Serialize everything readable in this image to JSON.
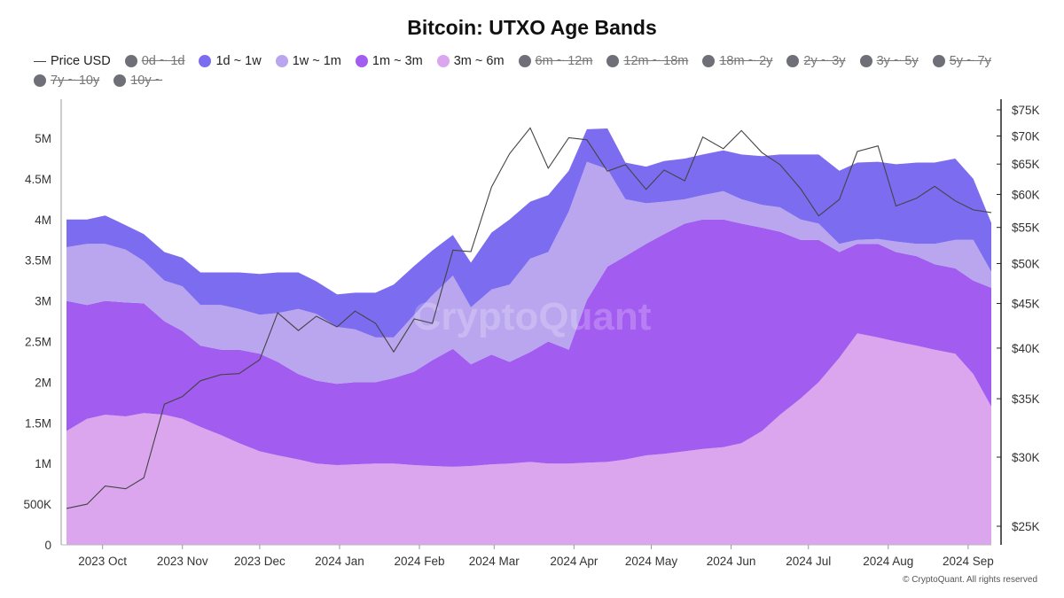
{
  "title": "Bitcoin: UTXO Age Bands",
  "copyright": "© CryptoQuant. All rights reserved",
  "watermark": "CryptoQuant",
  "legend": [
    {
      "label": "Price USD",
      "kind": "line",
      "color": "#444444",
      "active": true
    },
    {
      "label": "0d ~ 1d",
      "kind": "dot",
      "color": "#6f6f78",
      "active": false
    },
    {
      "label": "1d ~ 1w",
      "kind": "dot",
      "color": "#7b6cf0",
      "active": true
    },
    {
      "label": "1w ~ 1m",
      "kind": "dot",
      "color": "#b9a6ef",
      "active": true
    },
    {
      "label": "1m ~ 3m",
      "kind": "dot",
      "color": "#a35cf0",
      "active": true
    },
    {
      "label": "3m ~ 6m",
      "kind": "dot",
      "color": "#dba6ee",
      "active": true
    },
    {
      "label": "6m ~ 12m",
      "kind": "dot",
      "color": "#6f6f78",
      "active": false
    },
    {
      "label": "12m ~ 18m",
      "kind": "dot",
      "color": "#6f6f78",
      "active": false
    },
    {
      "label": "18m ~ 2y",
      "kind": "dot",
      "color": "#6f6f78",
      "active": false
    },
    {
      "label": "2y ~ 3y",
      "kind": "dot",
      "color": "#6f6f78",
      "active": false
    },
    {
      "label": "3y ~ 5y",
      "kind": "dot",
      "color": "#6f6f78",
      "active": false
    },
    {
      "label": "5y ~ 7y",
      "kind": "dot",
      "color": "#6f6f78",
      "active": false
    },
    {
      "label": "7y ~ 10y",
      "kind": "dot",
      "color": "#6f6f78",
      "active": false
    },
    {
      "label": "10y ~",
      "kind": "dot",
      "color": "#6f6f78",
      "active": false
    }
  ],
  "chart_data": {
    "type": "area",
    "stacked": true,
    "title": "Bitcoin: UTXO Age Bands",
    "x_ticks": [
      "2023 Oct",
      "2023 Nov",
      "2023 Dec",
      "2024 Jan",
      "2024 Feb",
      "2024 Mar",
      "2024 Apr",
      "2024 May",
      "2024 Jun",
      "2024 Jul",
      "2024 Aug",
      "2024 Sep"
    ],
    "y_left": {
      "ticks": [
        0,
        500000,
        1000000,
        1500000,
        2000000,
        2500000,
        3000000,
        3500000,
        4000000,
        4500000,
        5000000
      ],
      "tick_labels": [
        "0",
        "500K",
        "1M",
        "1.5M",
        "2M",
        "2.5M",
        "3M",
        "3.5M",
        "4M",
        "4.5M",
        "5M"
      ],
      "ylim": [
        0,
        5000000
      ]
    },
    "y_right": {
      "scale": "log",
      "ticks": [
        25000,
        30000,
        35000,
        40000,
        45000,
        50000,
        55000,
        60000,
        65000,
        70000,
        75000
      ],
      "tick_labels": [
        "$25K",
        "$30K",
        "$35K",
        "$40K",
        "$45K",
        "$50K",
        "$55K",
        "$60K",
        "$65K",
        "$70K",
        "$75K"
      ],
      "ylim": [
        24000,
        76000
      ]
    },
    "grid": false,
    "legend_position": "top",
    "dates": [
      "2023-09-17",
      "2023-09-25",
      "2023-10-02",
      "2023-10-10",
      "2023-10-17",
      "2023-10-25",
      "2023-11-01",
      "2023-11-08",
      "2023-11-16",
      "2023-11-23",
      "2023-12-01",
      "2023-12-08",
      "2023-12-16",
      "2023-12-23",
      "2023-12-31",
      "2024-01-07",
      "2024-01-15",
      "2024-01-22",
      "2024-01-30",
      "2024-02-06",
      "2024-02-14",
      "2024-02-21",
      "2024-02-29",
      "2024-03-07",
      "2024-03-15",
      "2024-03-22",
      "2024-03-30",
      "2024-04-06",
      "2024-04-14",
      "2024-04-21",
      "2024-04-29",
      "2024-05-06",
      "2024-05-14",
      "2024-05-21",
      "2024-05-29",
      "2024-06-05",
      "2024-06-13",
      "2024-06-20",
      "2024-06-28",
      "2024-07-05",
      "2024-07-13",
      "2024-07-20",
      "2024-07-28",
      "2024-08-04",
      "2024-08-12",
      "2024-08-19",
      "2024-08-27",
      "2024-09-03",
      "2024-09-10"
    ],
    "series": [
      {
        "name": "3m ~ 6m",
        "color": "#dba6ee",
        "values": [
          1400000,
          1550000,
          1600000,
          1580000,
          1620000,
          1600000,
          1550000,
          1450000,
          1350000,
          1250000,
          1150000,
          1100000,
          1050000,
          1000000,
          980000,
          990000,
          1000000,
          1000000,
          980000,
          970000,
          960000,
          970000,
          990000,
          1000000,
          1020000,
          1000000,
          1000000,
          1010000,
          1020000,
          1050000,
          1100000,
          1120000,
          1150000,
          1180000,
          1200000,
          1250000,
          1400000,
          1600000,
          1800000,
          2000000,
          2300000,
          2600000,
          2550000,
          2500000,
          2450000,
          2400000,
          2350000,
          2100000,
          1700000
        ]
      },
      {
        "name": "1m ~ 3m",
        "color": "#a35cf0",
        "values": [
          1600000,
          1400000,
          1400000,
          1400000,
          1350000,
          1150000,
          1080000,
          1000000,
          1050000,
          1150000,
          1200000,
          1150000,
          1050000,
          1020000,
          1000000,
          1010000,
          1000000,
          1050000,
          1150000,
          1300000,
          1450000,
          1250000,
          1350000,
          1250000,
          1350000,
          1500000,
          1400000,
          2000000,
          2400000,
          2500000,
          2600000,
          2700000,
          2800000,
          2820000,
          2800000,
          2700000,
          2500000,
          2250000,
          1950000,
          1750000,
          1300000,
          1100000,
          1150000,
          1100000,
          1100000,
          1050000,
          1050000,
          1150000,
          1460000
        ]
      },
      {
        "name": "1w ~ 1m",
        "color": "#b9a6ef",
        "values": [
          660000,
          750000,
          700000,
          650000,
          520000,
          500000,
          550000,
          500000,
          550000,
          500000,
          480000,
          600000,
          800000,
          820000,
          700000,
          650000,
          550000,
          500000,
          700000,
          800000,
          900000,
          700000,
          800000,
          950000,
          1150000,
          1100000,
          1700000,
          1700000,
          1200000,
          700000,
          500000,
          400000,
          300000,
          300000,
          350000,
          300000,
          280000,
          300000,
          250000,
          200000,
          100000,
          50000,
          60000,
          130000,
          150000,
          250000,
          350000,
          500000,
          200000
        ]
      },
      {
        "name": "1d ~ 1w",
        "color": "#7b6cf0",
        "values": [
          340000,
          300000,
          350000,
          300000,
          330000,
          350000,
          350000,
          400000,
          400000,
          450000,
          500000,
          500000,
          450000,
          400000,
          400000,
          450000,
          550000,
          650000,
          600000,
          550000,
          500000,
          550000,
          700000,
          800000,
          700000,
          700000,
          500000,
          400000,
          500000,
          450000,
          450000,
          500000,
          500000,
          500000,
          500000,
          550000,
          600000,
          650000,
          800000,
          850000,
          900000,
          950000,
          950000,
          950000,
          1000000,
          1000000,
          1000000,
          750000,
          600000
        ]
      }
    ],
    "price_usd": {
      "name": "Price USD",
      "color": "#444444",
      "values": [
        26200,
        26500,
        27800,
        27600,
        28400,
        34500,
        35200,
        36700,
        37300,
        37400,
        38800,
        43900,
        41900,
        43500,
        42300,
        44100,
        42700,
        39600,
        43200,
        42700,
        51800,
        51600,
        61200,
        66800,
        71500,
        64300,
        69700,
        69300,
        63800,
        64900,
        60800,
        64000,
        62200,
        69800,
        67700,
        71000,
        67000,
        64900,
        60900,
        56700,
        59200,
        67200,
        68200,
        58200,
        59400,
        61300,
        59000,
        57600,
        57200
      ]
    }
  }
}
